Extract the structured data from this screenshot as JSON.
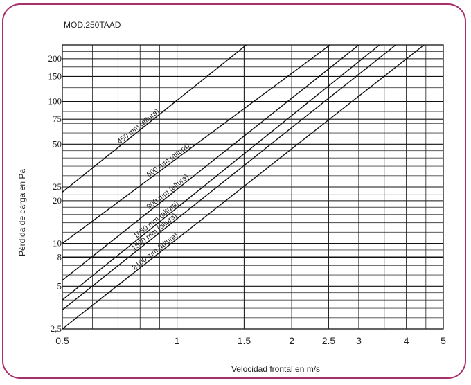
{
  "chart_data": {
    "type": "line",
    "title": "MOD.250TAAD",
    "xlabel": "Velocidad frontal en m/s",
    "ylabel": "Pérdida de carga en Pa",
    "x_scale": "log",
    "y_scale": "log",
    "xlim": [
      0.5,
      5
    ],
    "ylim": [
      2.5,
      250
    ],
    "x_ticks": [
      0.5,
      1,
      1.5,
      2,
      2.5,
      3,
      4,
      5
    ],
    "x_tick_labels": [
      "0.5",
      "1",
      "1.5",
      "2",
      "2.5",
      "3",
      "4",
      "5"
    ],
    "y_ticks": [
      2.5,
      5,
      8,
      10,
      20,
      25,
      50,
      75,
      100,
      150,
      200
    ],
    "y_tick_labels": [
      "2,5",
      "5",
      "8",
      "10",
      "20",
      "25",
      "50",
      "75",
      "100",
      "150",
      "200"
    ],
    "grid": true,
    "series": [
      {
        "name": "450 mm (altura)",
        "x": [
          0.5,
          1.52
        ],
        "y": [
          23,
          250
        ]
      },
      {
        "name": "600 mm (altura)",
        "x": [
          0.5,
          2.52
        ],
        "y": [
          10,
          250
        ]
      },
      {
        "name": "900 mm (altura)",
        "x": [
          0.5,
          3.0
        ],
        "y": [
          5.5,
          250
        ]
      },
      {
        "name": "1050 mm (altura)",
        "x": [
          0.5,
          3.4
        ],
        "y": [
          4.0,
          250
        ]
      },
      {
        "name": "1500 mm (altura)",
        "x": [
          0.5,
          3.75
        ],
        "y": [
          3.4,
          250
        ]
      },
      {
        "name": "2100 mm (altura)",
        "x": [
          0.5,
          4.45
        ],
        "y": [
          2.5,
          250
        ]
      }
    ]
  }
}
